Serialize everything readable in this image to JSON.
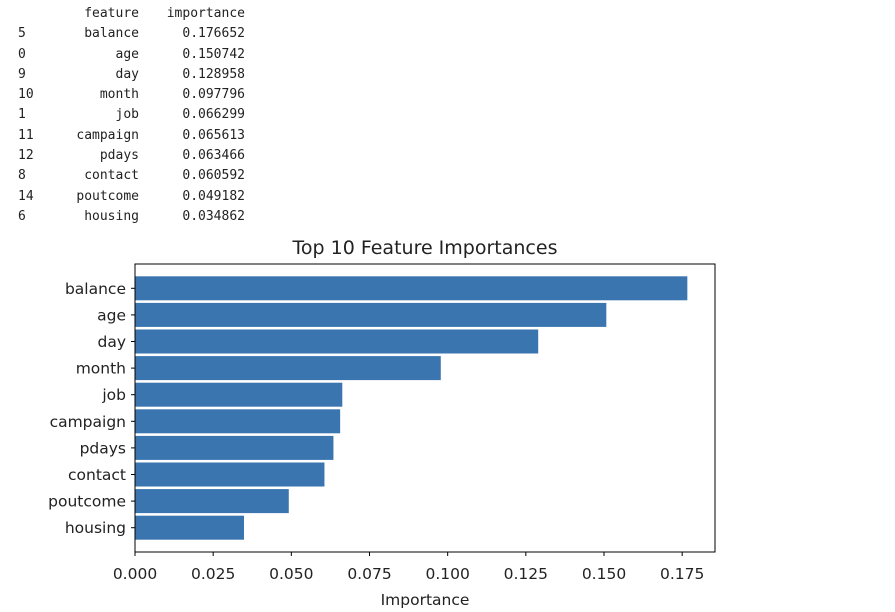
{
  "table": {
    "headers": [
      "",
      "feature",
      "importance"
    ],
    "rows": [
      {
        "index": "5",
        "feature": "balance",
        "importance": "0.176652"
      },
      {
        "index": "0",
        "feature": "age",
        "importance": "0.150742"
      },
      {
        "index": "9",
        "feature": "day",
        "importance": "0.128958"
      },
      {
        "index": "10",
        "feature": "month",
        "importance": "0.097796"
      },
      {
        "index": "1",
        "feature": "job",
        "importance": "0.066299"
      },
      {
        "index": "11",
        "feature": "campaign",
        "importance": "0.065613"
      },
      {
        "index": "12",
        "feature": "pdays",
        "importance": "0.063466"
      },
      {
        "index": "8",
        "feature": "contact",
        "importance": "0.060592"
      },
      {
        "index": "14",
        "feature": "poutcome",
        "importance": "0.049182"
      },
      {
        "index": "6",
        "feature": "housing",
        "importance": "0.034862"
      }
    ]
  },
  "chart_data": {
    "type": "bar",
    "orientation": "horizontal",
    "title": "Top 10 Feature Importances",
    "xlabel": "Importance",
    "ylabel": "",
    "categories": [
      "balance",
      "age",
      "day",
      "month",
      "job",
      "campaign",
      "pdays",
      "contact",
      "poutcome",
      "housing"
    ],
    "values": [
      0.176652,
      0.150742,
      0.128958,
      0.097796,
      0.066299,
      0.065613,
      0.063466,
      0.060592,
      0.049182,
      0.034862
    ],
    "xlim": [
      0,
      0.1855
    ],
    "xticks": [
      0.0,
      0.025,
      0.05,
      0.075,
      0.1,
      0.125,
      0.15,
      0.175
    ],
    "xtick_labels": [
      "0.000",
      "0.025",
      "0.050",
      "0.075",
      "0.100",
      "0.125",
      "0.150",
      "0.175"
    ],
    "grid": false,
    "bar_color": "#3a75b0"
  }
}
